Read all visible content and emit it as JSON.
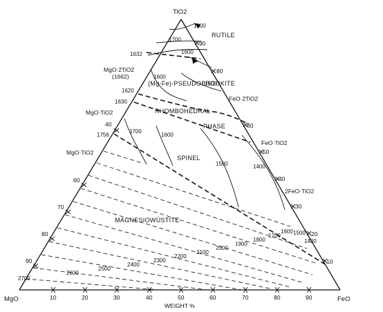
{
  "vertices": {
    "top": "TiO2",
    "left": "MgO",
    "right": "FeO"
  },
  "axis_label": "WEIGHT %",
  "bottom_ticks": [
    "10",
    "20",
    "30",
    "40",
    "50",
    "60",
    "70",
    "80",
    "90"
  ],
  "left_ticks": [
    "40",
    "60",
    "70",
    "80",
    "90"
  ],
  "right_ticks": [
    "90",
    "80",
    "60",
    "50",
    "40",
    "30",
    "20",
    "10"
  ],
  "compounds_left": [
    {
      "label": "MgO·2TiO2",
      "temp": "1632"
    },
    {
      "label": "(1662)",
      "temp": ""
    },
    {
      "label": "MgO·TiO2",
      "temp": "1630"
    },
    {
      "label": "MgO·TiO2",
      "temp": "1756"
    }
  ],
  "left_temps": [
    "1620"
  ],
  "compounds_right": [
    "FeO·2TiO2",
    "FeO·TiO2",
    "2FeO·TiO2"
  ],
  "phases": [
    "RUTILE",
    "(Mg-Fe)-PSEUDOBROOKITE",
    "RHOMBOHEDRAL",
    "PHASE",
    "SPINEL",
    "MAGNESIOWÜSTITE"
  ],
  "isotherms_top": [
    "1800",
    "1700",
    "1600",
    "1600",
    "1500"
  ],
  "isotherms_mid": [
    "1700",
    "1600",
    "1500",
    "1400"
  ],
  "isotherms_bottom": [
    "2700",
    "2600",
    "2500",
    "2400",
    "2300",
    "2200",
    "2100",
    "2000",
    "1900",
    "1800",
    "1700",
    "1600",
    "1500",
    "1400"
  ]
}
